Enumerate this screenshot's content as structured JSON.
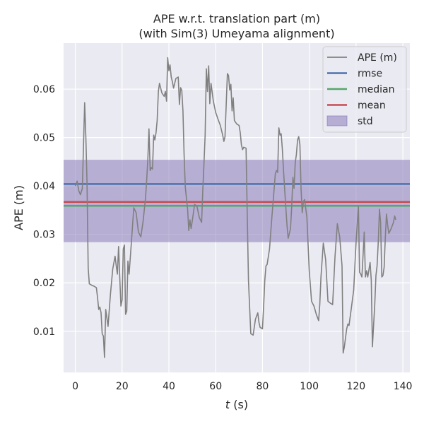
{
  "chart_data": {
    "type": "line",
    "title_line1": "APE w.r.t. translation part (m)",
    "title_line2": "(with Sim(3) Umeyama alignment)",
    "xlabel_var": "t",
    "xlabel_unit": " (s)",
    "ylabel": "APE (m)",
    "xlim": [
      -5,
      143
    ],
    "ylim": [
      0.0015,
      0.0695
    ],
    "xticks": [
      0,
      20,
      40,
      60,
      80,
      100,
      120,
      140
    ],
    "yticks": [
      0.01,
      0.02,
      0.03,
      0.04,
      0.05,
      0.06
    ],
    "xtick_labels": [
      "0",
      "20",
      "40",
      "60",
      "80",
      "100",
      "120",
      "140"
    ],
    "ytick_labels": [
      "0.01",
      "0.02",
      "0.03",
      "0.04",
      "0.05",
      "0.06"
    ],
    "grid": true,
    "legend_position": "top-right",
    "stats": {
      "rmse": 0.0404,
      "median": 0.0359,
      "mean": 0.0367,
      "std_band": [
        0.0284,
        0.0454
      ]
    },
    "legend": [
      {
        "label": "APE (m)",
        "kind": "line",
        "color": "#808080"
      },
      {
        "label": "rmse",
        "kind": "line",
        "color": "#4c72b0"
      },
      {
        "label": "median",
        "kind": "line",
        "color": "#55a868"
      },
      {
        "label": "mean",
        "kind": "line",
        "color": "#c44e52"
      },
      {
        "label": "std",
        "kind": "patch",
        "color": "#8172b3"
      }
    ],
    "colors": {
      "ape": "#808080",
      "rmse": "#4c72b0",
      "median": "#55a868",
      "mean": "#c44e52",
      "std": "#8172b3",
      "axes_bg": "#eaeaf2",
      "grid": "#ffffff"
    },
    "series": [
      {
        "name": "APE (m)",
        "x": [
          0,
          0.8,
          1.5,
          2.2,
          3,
          3.5,
          4,
          4.5,
          5,
          5.5,
          6,
          7,
          8,
          9,
          9.5,
          10,
          10.5,
          11,
          11.5,
          12,
          12.5,
          13,
          14,
          15,
          16,
          17,
          17.5,
          18,
          18.5,
          19,
          19.5,
          20,
          20.5,
          21,
          21.5,
          22,
          22.5,
          23,
          24,
          25,
          26,
          27,
          28,
          29,
          30,
          30.5,
          31,
          31.5,
          32,
          32.5,
          33,
          33.5,
          34,
          34.5,
          35,
          35.5,
          36,
          37,
          38,
          38.5,
          39,
          39.5,
          40,
          40.5,
          41,
          41.5,
          42,
          43,
          44,
          44.5,
          45,
          45.5,
          46,
          46.5,
          47,
          47.5,
          48,
          48.5,
          49,
          49.5,
          50,
          51,
          52,
          53,
          54,
          54.5,
          55,
          55.5,
          56,
          56.5,
          57,
          57.5,
          58,
          59,
          60,
          61,
          62,
          63,
          63.5,
          64,
          64.5,
          65,
          65.5,
          66,
          66.5,
          67,
          67.5,
          68,
          69,
          70,
          70.5,
          71,
          71.5,
          72,
          73,
          73.5,
          74,
          75,
          76,
          77,
          78,
          78.5,
          79,
          80,
          80.5,
          81,
          81.5,
          82,
          83,
          84,
          85,
          85.5,
          86,
          86.5,
          87,
          87.5,
          88,
          88.5,
          89,
          89.5,
          90,
          90.5,
          91,
          92,
          92.5,
          93,
          93.5,
          94,
          94.5,
          95,
          95.5,
          96,
          96.5,
          97,
          97.5,
          98,
          99,
          100,
          101,
          102,
          103,
          104,
          104.5,
          105,
          106,
          107,
          108,
          109,
          110,
          111,
          112,
          113,
          114,
          114.5,
          115,
          116,
          116.5,
          117,
          118,
          119,
          120,
          121,
          121.5,
          122,
          122.5,
          123,
          123.5,
          124,
          124.5,
          125,
          126,
          126.5,
          127,
          128,
          128.5,
          129,
          129.5,
          130,
          130.5,
          131,
          131.5,
          132,
          132.5,
          133,
          133.5,
          134,
          135,
          136,
          136.5,
          137
        ],
        "values": [
          0.04,
          0.041,
          0.039,
          0.0382,
          0.0395,
          0.048,
          0.0572,
          0.05,
          0.041,
          0.023,
          0.0198,
          0.0195,
          0.0193,
          0.019,
          0.017,
          0.0145,
          0.015,
          0.0138,
          0.0095,
          0.009,
          0.0046,
          0.0145,
          0.011,
          0.0175,
          0.0228,
          0.0255,
          0.0235,
          0.0218,
          0.0275,
          0.021,
          0.0152,
          0.0165,
          0.027,
          0.0278,
          0.0135,
          0.0142,
          0.0245,
          0.0218,
          0.0285,
          0.0355,
          0.0345,
          0.0305,
          0.0295,
          0.0328,
          0.0375,
          0.041,
          0.0455,
          0.0518,
          0.0432,
          0.0438,
          0.0435,
          0.0505,
          0.0495,
          0.051,
          0.0535,
          0.0595,
          0.0612,
          0.0592,
          0.0585,
          0.0595,
          0.0575,
          0.0665,
          0.0638,
          0.065,
          0.0625,
          0.0615,
          0.0602,
          0.0622,
          0.0625,
          0.0568,
          0.0603,
          0.0598,
          0.0555,
          0.0465,
          0.0398,
          0.0375,
          0.0352,
          0.0308,
          0.033,
          0.0312,
          0.0328,
          0.0362,
          0.0358,
          0.0335,
          0.0325,
          0.0392,
          0.0445,
          0.0505,
          0.0642,
          0.0595,
          0.0648,
          0.057,
          0.0612,
          0.0575,
          0.0552,
          0.0538,
          0.0525,
          0.0505,
          0.0492,
          0.0502,
          0.0568,
          0.0632,
          0.0628,
          0.0598,
          0.061,
          0.0555,
          0.0582,
          0.0535,
          0.0528,
          0.0525,
          0.051,
          0.0485,
          0.0475,
          0.048,
          0.0478,
          0.034,
          0.0205,
          0.0095,
          0.0092,
          0.0125,
          0.0138,
          0.0118,
          0.0108,
          0.0105,
          0.0152,
          0.0205,
          0.0235,
          0.0238,
          0.027,
          0.0335,
          0.0395,
          0.0425,
          0.0432,
          0.0428,
          0.052,
          0.0505,
          0.0508,
          0.0475,
          0.0432,
          0.0392,
          0.0355,
          0.0318,
          0.0292,
          0.0312,
          0.0358,
          0.0418,
          0.0395,
          0.0448,
          0.0465,
          0.0495,
          0.0502,
          0.0485,
          0.0395,
          0.0345,
          0.0368,
          0.0372,
          0.0335,
          0.0225,
          0.0162,
          0.0152,
          0.0135,
          0.0122,
          0.0155,
          0.0212,
          0.0282,
          0.0248,
          0.0162,
          0.0158,
          0.0155,
          0.0255,
          0.0322,
          0.0295,
          0.0235,
          0.0055,
          0.0068,
          0.0105,
          0.0115,
          0.0112,
          0.0148,
          0.0185,
          0.0285,
          0.0358,
          0.0222,
          0.0218,
          0.0212,
          0.0258,
          0.0305,
          0.0212,
          0.0225,
          0.0212,
          0.0242,
          0.0205,
          0.0068,
          0.0155,
          0.0215,
          0.0235,
          0.0285,
          0.0352,
          0.0325,
          0.0212,
          0.0215,
          0.0232,
          0.0292,
          0.0342,
          0.032,
          0.0302,
          0.0312,
          0.0325,
          0.0338,
          0.033
        ]
      }
    ]
  }
}
